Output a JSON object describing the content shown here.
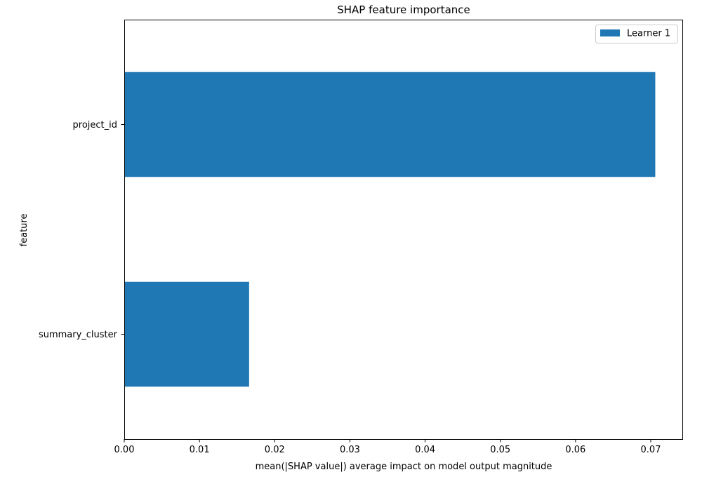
{
  "chart_data": {
    "type": "bar",
    "orientation": "horizontal",
    "title": "SHAP feature importance",
    "xlabel": "mean(|SHAP value|) average impact on model output magnitude",
    "ylabel": "feature",
    "categories": [
      "project_id",
      "summary_cluster"
    ],
    "series": [
      {
        "name": "Learner 1",
        "values": [
          0.0706,
          0.0166
        ],
        "color": "#1f77b4"
      }
    ],
    "xlim": [
      0,
      0.0742
    ],
    "xticks": [
      0.0,
      0.01,
      0.02,
      0.03,
      0.04,
      0.05,
      0.06,
      0.07
    ],
    "xtick_labels": [
      "0.00",
      "0.01",
      "0.02",
      "0.03",
      "0.04",
      "0.05",
      "0.06",
      "0.07"
    ],
    "grid": false,
    "legend_position": "top-right"
  }
}
